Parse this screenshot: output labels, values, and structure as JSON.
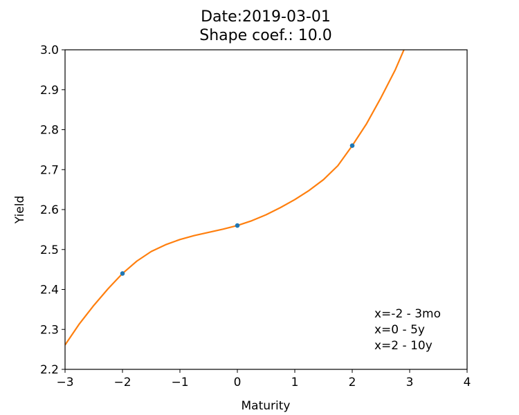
{
  "chart_data": {
    "type": "line",
    "title": "Date:2019-03-01",
    "subtitle": "Shape coef.: 10.0",
    "xlabel": "Maturity",
    "ylabel": "Yield",
    "xlim": [
      -3,
      4
    ],
    "ylim": [
      2.2,
      3.0
    ],
    "xticks": [
      -3,
      -2,
      -1,
      0,
      1,
      2,
      3,
      4
    ],
    "xtick_labels": [
      "−3",
      "−2",
      "−1",
      "0",
      "1",
      "2",
      "3",
      "4"
    ],
    "yticks": [
      2.2,
      2.3,
      2.4,
      2.5,
      2.6,
      2.7,
      2.8,
      2.9,
      3.0
    ],
    "ytick_labels": [
      "2.2",
      "2.3",
      "2.4",
      "2.5",
      "2.6",
      "2.7",
      "2.8",
      "2.9",
      "3.0"
    ],
    "grid": false,
    "series": [
      {
        "kind": "scatter",
        "color": "#1f77b4",
        "x": [
          -2,
          0,
          2
        ],
        "y": [
          2.44,
          2.56,
          2.76
        ]
      },
      {
        "kind": "line",
        "color": "#ff7f0e",
        "x": [
          -3,
          -2.75,
          -2.5,
          -2.25,
          -2,
          -1.75,
          -1.5,
          -1.25,
          -1,
          -0.75,
          -0.5,
          -0.25,
          0,
          0.25,
          0.5,
          0.75,
          1,
          1.25,
          1.5,
          1.75,
          2,
          2.25,
          2.5,
          2.75,
          2.9
        ],
        "y": [
          2.261,
          2.314,
          2.36,
          2.402,
          2.44,
          2.471,
          2.495,
          2.512,
          2.525,
          2.535,
          2.543,
          2.551,
          2.56,
          2.572,
          2.587,
          2.605,
          2.625,
          2.648,
          2.675,
          2.71,
          2.76,
          2.815,
          2.88,
          2.95,
          3.0
        ]
      }
    ],
    "annotations": [
      "x=-2 - 3mo",
      "x=0 - 5y",
      "x=2 - 10y"
    ]
  }
}
